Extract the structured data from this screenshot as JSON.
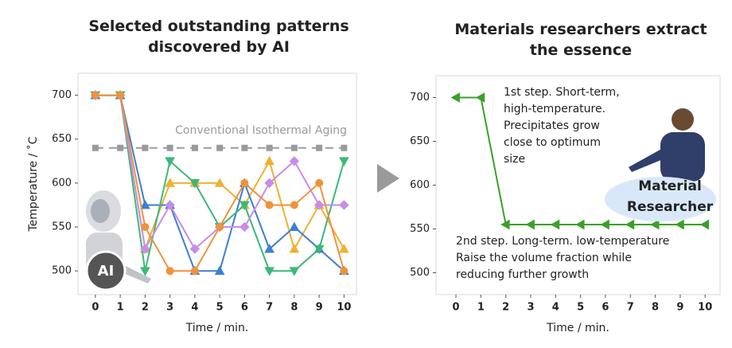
{
  "chart_data": [
    {
      "type": "line",
      "title": "Selected outstanding patterns discovered by AI",
      "xlabel": "Time / min.",
      "ylabel": "Temperature / ˚C",
      "x": [
        0,
        1,
        2,
        3,
        4,
        5,
        6,
        7,
        8,
        9,
        10
      ],
      "xlim": [
        -0.7,
        10.5
      ],
      "xticks": [
        0,
        1,
        2,
        3,
        4,
        5,
        6,
        7,
        8,
        9,
        10
      ],
      "ylim": [
        473,
        725
      ],
      "yticks": [
        500,
        550,
        600,
        650,
        700
      ],
      "reference": {
        "label": "Conventional Isothermal Aging",
        "value": 640,
        "color": "#9a9a9a"
      },
      "badge": [
        "AI"
      ],
      "series": [
        {
          "color": "#f0b030",
          "marker": "triangle",
          "values": [
            700,
            700,
            525,
            600,
            600,
            600,
            575,
            625,
            525,
            575,
            525
          ]
        },
        {
          "color": "#3a7fd5",
          "marker": "triangle",
          "values": [
            700,
            700,
            575,
            575,
            500,
            500,
            600,
            525,
            550,
            525,
            500
          ]
        },
        {
          "color": "#3cb878",
          "marker": "triangle-down",
          "values": [
            700,
            700,
            500,
            625,
            600,
            550,
            575,
            500,
            500,
            525,
            625
          ]
        },
        {
          "color": "#c98ce8",
          "marker": "diamond",
          "values": [
            700,
            700,
            525,
            575,
            525,
            550,
            550,
            600,
            625,
            575,
            575
          ]
        },
        {
          "color": "#f0923a",
          "marker": "circle",
          "values": [
            700,
            700,
            550,
            500,
            500,
            550,
            600,
            575,
            575,
            600,
            500
          ]
        }
      ]
    },
    {
      "type": "line",
      "title": "Materials researchers extract the essence",
      "xlabel": "Time / min.",
      "x": [
        0,
        1,
        2,
        3,
        4,
        5,
        6,
        7,
        8,
        9,
        10
      ],
      "xlim": [
        -0.8,
        10.6
      ],
      "xticks": [
        0,
        1,
        2,
        3,
        4,
        5,
        6,
        7,
        8,
        9,
        10
      ],
      "ylim": [
        475,
        725
      ],
      "yticks": [
        500,
        550,
        600,
        650,
        700
      ],
      "badge": [
        "Material",
        "Researcher"
      ],
      "annotations": [
        {
          "lines": [
            "1st step. Short-term,",
            "high-temperature.",
            "Precipitates grow",
            "close to optimum",
            "size"
          ]
        },
        {
          "lines": [
            "2nd step. Long-term. low-temperature",
            "Raise the volume fraction while",
            "reducing further growth"
          ]
        }
      ],
      "series": [
        {
          "color": "#3aa02a",
          "marker": "triangle-left",
          "values": [
            700,
            700,
            555,
            555,
            555,
            555,
            555,
            555,
            555,
            555,
            555
          ]
        }
      ]
    }
  ]
}
